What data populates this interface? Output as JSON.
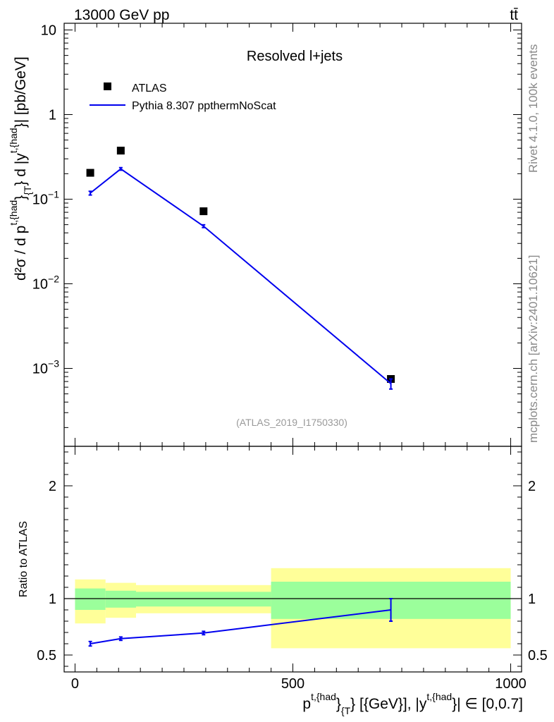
{
  "header": {
    "left": "13000 GeV pp",
    "right": "tt̄"
  },
  "side_labels": {
    "rivet": "Rivet 4.1.0,  100k events",
    "mcplots": "mcplots.cern.ch [arXiv:2401.10621]"
  },
  "colors": {
    "mc": "#0000ee",
    "data": "#000000",
    "band_inner": "#9bff9b",
    "band_outer": "#ffff99"
  },
  "chart_data": [
    {
      "type": "scatter",
      "title": "Resolved l+jets",
      "watermark": "(ATLAS_2019_I1750330)",
      "ylabel": {
        "base": "d²σ / d p",
        "sup1": "t,{had",
        "sub1": "}",
        "sub1b": "{T",
        "sub1c": "}",
        "mid": " d |y",
        "sup2": "t,{had",
        "tail": "}| [pb/GeV]"
      },
      "yscale": "log",
      "ylim": [
        0.00012,
        12
      ],
      "yticks": [
        {
          "value": 10,
          "label": "10"
        },
        {
          "value": 1,
          "label": "1"
        },
        {
          "value": 0.1,
          "label": "10",
          "exp": "−1"
        },
        {
          "value": 0.01,
          "label": "10",
          "exp": "−2"
        },
        {
          "value": 0.001,
          "label": "10",
          "exp": "−3"
        }
      ],
      "xlim": [
        -25,
        1025
      ],
      "legend": {
        "placement": "top-left",
        "entries": [
          {
            "name": "ATLAS",
            "style": "marker"
          },
          {
            "name": "Pythia 8.307 ppthermNoScat",
            "style": "line"
          }
        ]
      },
      "series": [
        {
          "name": "ATLAS",
          "x": [
            35,
            105,
            295,
            725
          ],
          "y": [
            0.205,
            0.375,
            0.072,
            0.00075
          ]
        },
        {
          "name": "Pythia 8.307 ppthermNoScat",
          "x": [
            35,
            105,
            295,
            725
          ],
          "y": [
            0.118,
            0.228,
            0.048,
            0.00066
          ],
          "yerr": [
            0.006,
            0.008,
            0.0018,
            9e-05
          ]
        }
      ]
    },
    {
      "type": "line",
      "ylabel": "Ratio to ATLAS",
      "ylim": [
        0.35,
        2.35
      ],
      "yticks": [
        0.5,
        1,
        2
      ],
      "ytick_labels": [
        "0.5",
        "1",
        "2"
      ],
      "xlim": [
        -25,
        1025
      ],
      "xticks": [
        0,
        500,
        1000
      ],
      "xtick_labels": [
        "0",
        "500",
        "1000"
      ],
      "xlabel": {
        "p": "p",
        "sup1": "t,{had",
        "sub1": "}",
        "sub1b": "{T",
        "sub1c": "}",
        "mid": " [{GeV}], |y",
        "sup2": "t,{had",
        "tail": "}| ∈ [0,0.7]"
      },
      "reference_line": 1,
      "bands": [
        {
          "x0": 0,
          "x1": 70,
          "inner": [
            0.9,
            1.09
          ],
          "outer": [
            0.78,
            1.17
          ]
        },
        {
          "x0": 70,
          "x1": 140,
          "inner": [
            0.92,
            1.07
          ],
          "outer": [
            0.83,
            1.14
          ]
        },
        {
          "x0": 140,
          "x1": 450,
          "inner": [
            0.93,
            1.06
          ],
          "outer": [
            0.87,
            1.12
          ]
        },
        {
          "x0": 450,
          "x1": 1000,
          "inner": [
            0.82,
            1.15
          ],
          "outer": [
            0.56,
            1.27
          ]
        }
      ],
      "series": [
        {
          "name": "Pythia 8.307 ppthermNoScat",
          "x": [
            35,
            105,
            295,
            725
          ],
          "y": [
            0.6,
            0.645,
            0.695,
            0.9
          ],
          "yerr": [
            0.02,
            0.015,
            0.015,
            0.1
          ]
        }
      ]
    }
  ]
}
